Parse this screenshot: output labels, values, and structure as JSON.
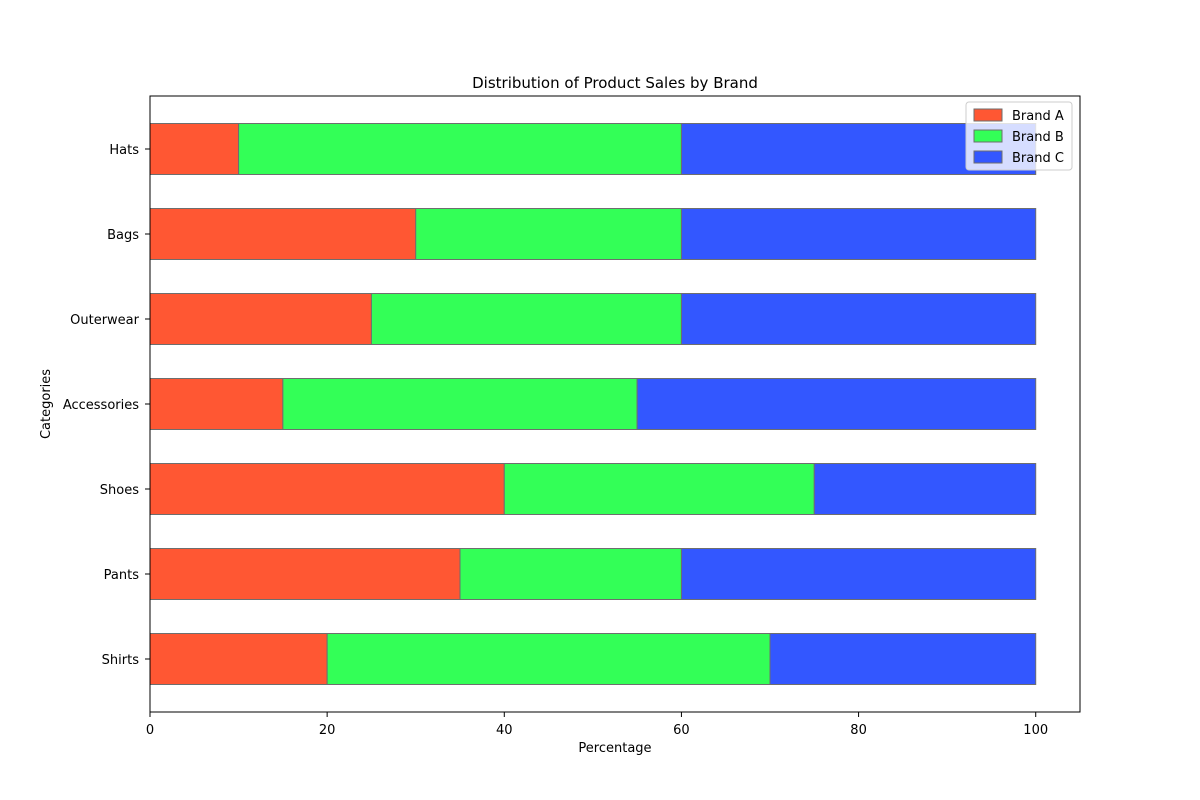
{
  "chart_data": {
    "type": "bar",
    "orientation": "horizontal",
    "stacked": true,
    "title": "Distribution of Product Sales by Brand",
    "xlabel": "Percentage",
    "ylabel": "Categories",
    "xlim": [
      0,
      105
    ],
    "xticks": [
      0,
      20,
      40,
      60,
      80,
      100
    ],
    "categories": [
      "Shirts",
      "Pants",
      "Shoes",
      "Accessories",
      "Outerwear",
      "Bags",
      "Hats"
    ],
    "series": [
      {
        "name": "Brand A",
        "color": "#ff5733",
        "values": [
          20,
          35,
          40,
          15,
          25,
          30,
          10
        ]
      },
      {
        "name": "Brand B",
        "color": "#33ff57",
        "values": [
          50,
          25,
          35,
          40,
          35,
          30,
          50
        ]
      },
      {
        "name": "Brand C",
        "color": "#3357ff",
        "values": [
          30,
          40,
          25,
          45,
          40,
          40,
          40
        ]
      }
    ],
    "legend": "top-right",
    "grid": false
  }
}
